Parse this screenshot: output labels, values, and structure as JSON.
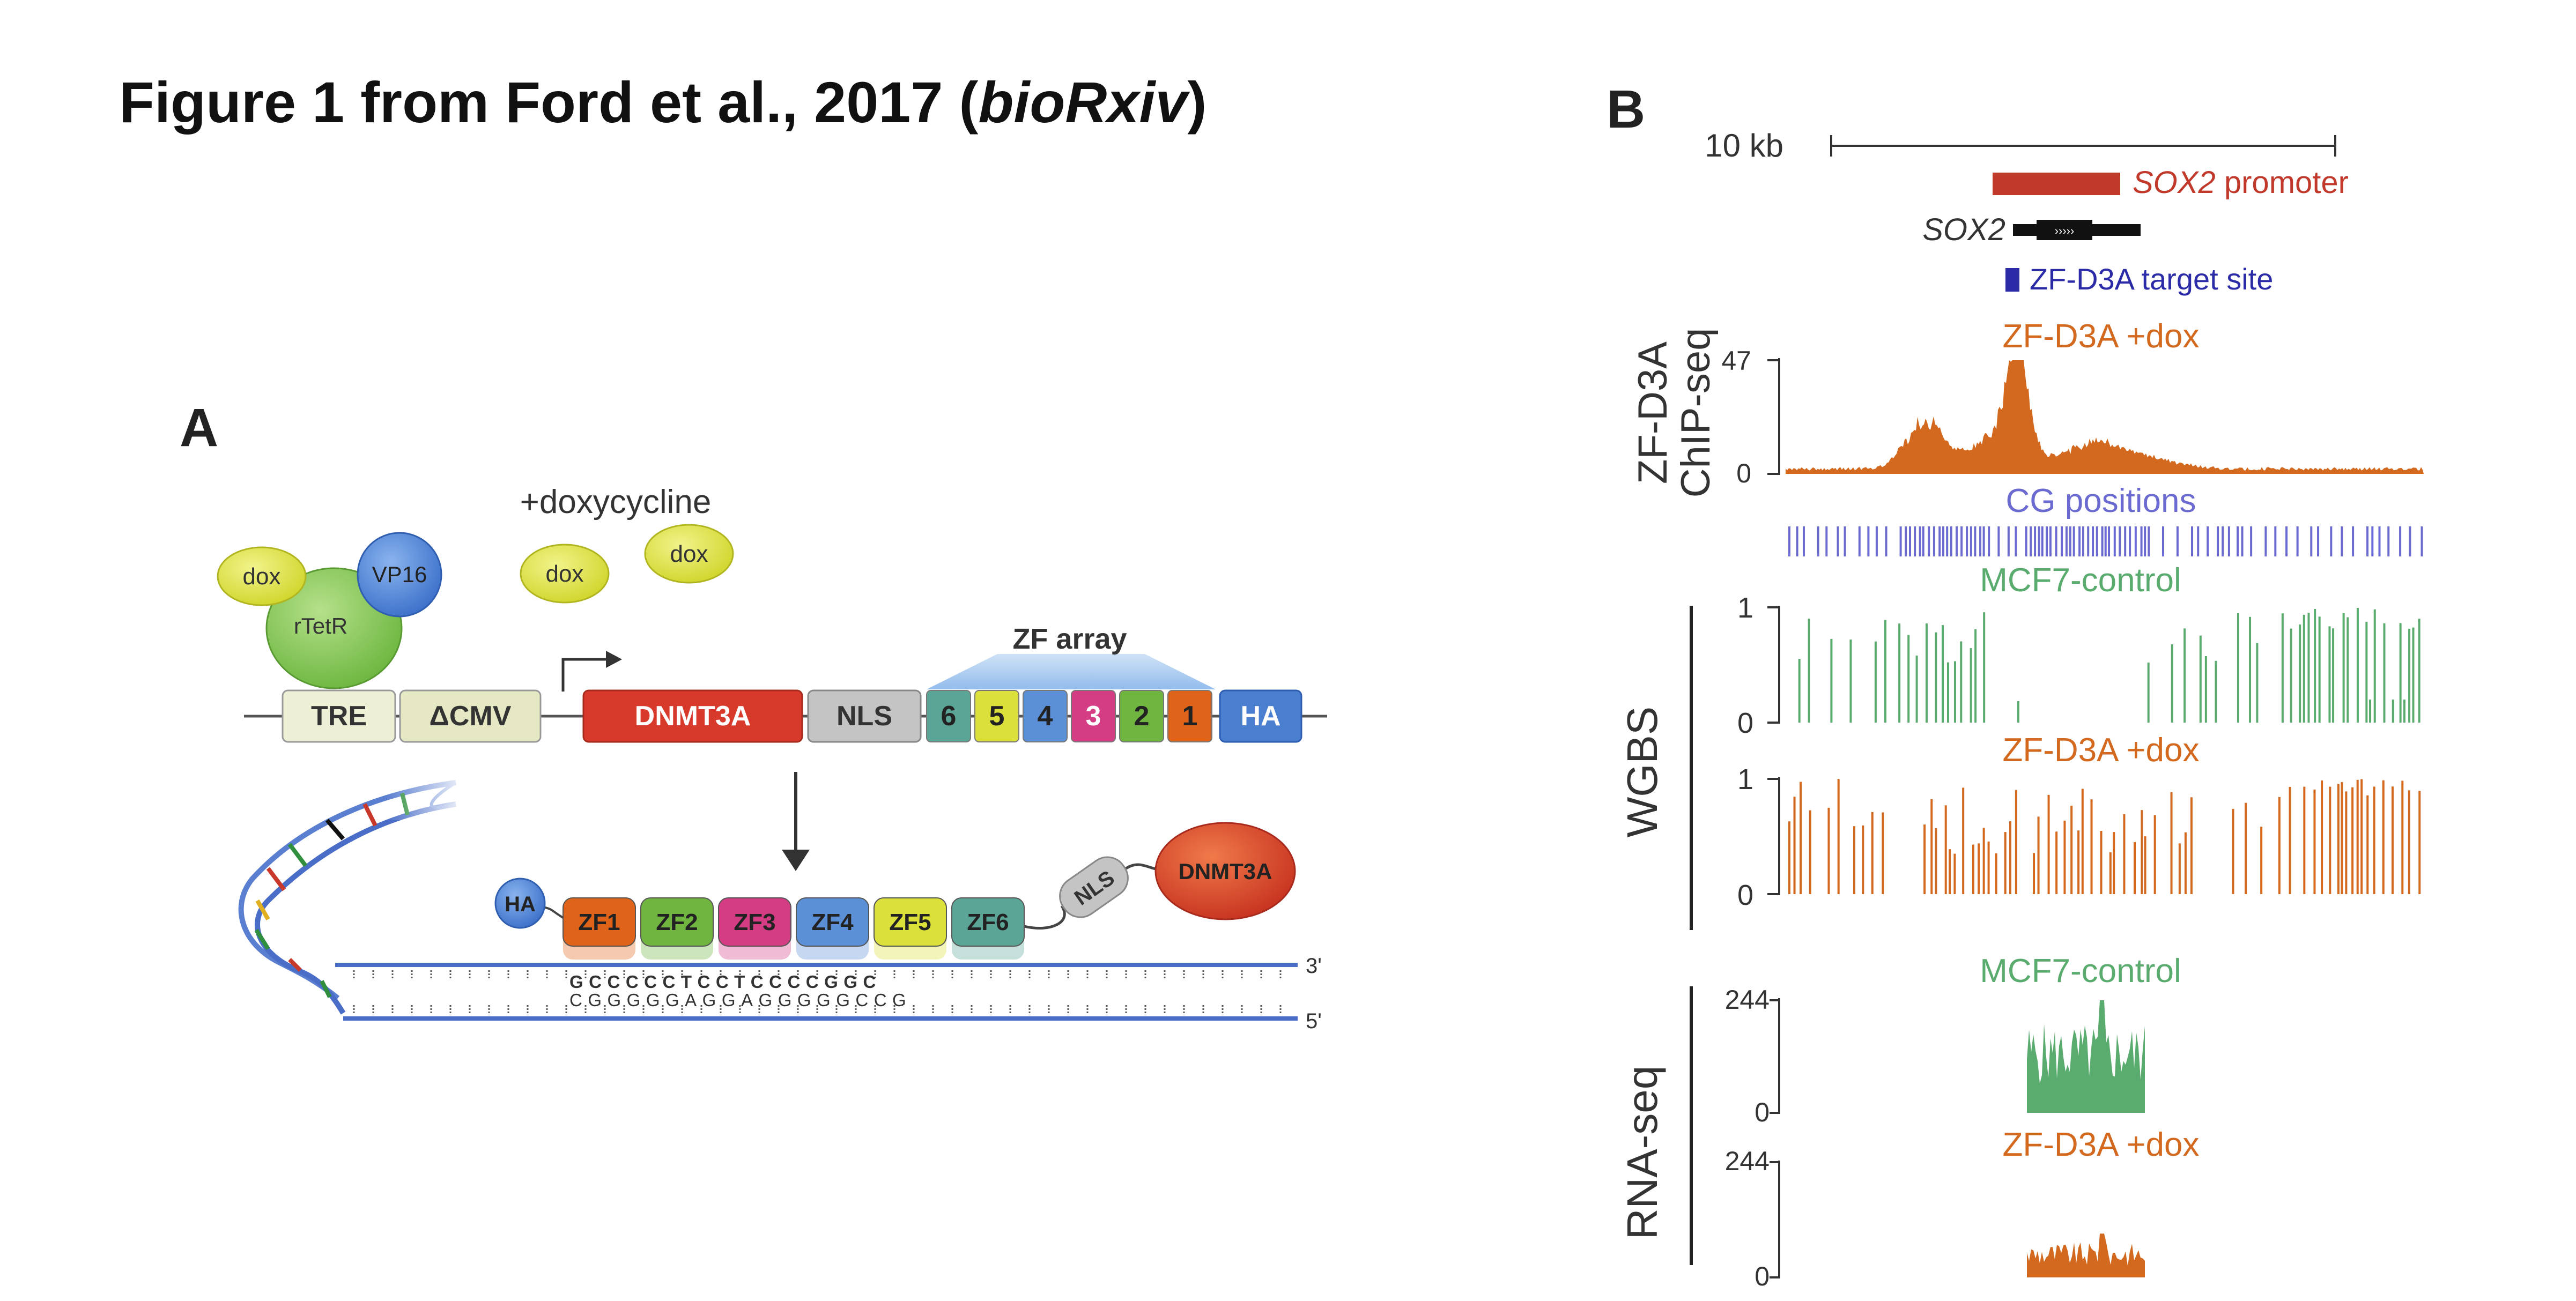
{
  "title": {
    "main": "Figure 1 from Ford et al., 2017 (",
    "italic": "bioRxiv",
    "close": ")"
  },
  "panel_a": {
    "letter": "A",
    "doxycycline_label": "+doxycycline",
    "dox_label": "dox",
    "vp16_label": "VP16",
    "rtetr_label": "rTetR",
    "zf_array_label": "ZF array",
    "construct": {
      "tre": "TRE",
      "dcmv": "ΔCMV",
      "dnmt3a": "DNMT3A",
      "nls": "NLS",
      "zf_digits": [
        "6",
        "5",
        "4",
        "3",
        "2",
        "1"
      ],
      "ha": "HA"
    },
    "protein": {
      "ha": "HA",
      "fingers": [
        "ZF1",
        "ZF2",
        "ZF3",
        "ZF4",
        "ZF5",
        "ZF6"
      ],
      "nls": "NLS",
      "dnmt3a": "DNMT3A"
    },
    "dna": {
      "top_seq": "GCCCCCTCCTCCCCGGC",
      "bottom_seq": "CGGGGGAGGAGGGGGCCG",
      "end_3": "3'",
      "end_5": "5'"
    },
    "colors": {
      "zf1": "#e0631a",
      "zf2": "#70b53f",
      "zf3": "#d43c84",
      "zf4": "#5b8fd6",
      "zf5": "#dbe03a",
      "zf6": "#5aa596",
      "dnmt3a": "#d73a2a",
      "ha": "#4a7fd0"
    }
  },
  "panel_b": {
    "letter": "B",
    "scale_label": "10 kb",
    "promoter_label_italic": "SOX2",
    "promoter_label_rest": " promoter",
    "gene_label": "SOX2",
    "target_site_label": "ZF-D3A target site",
    "chip_track_title": "ZF-D3A +dox",
    "chip_ylabel_line1": "ZF-D3A",
    "chip_ylabel_line2": "ChIP-seq",
    "chip_ymax": "47",
    "chip_ymin": "0",
    "cg_title": "CG positions",
    "wgbs_label": "WGBS",
    "wgbs_control_title": "MCF7-control",
    "wgbs_dox_title": "ZF-D3A +dox",
    "wgbs_ymax": "1",
    "wgbs_ymin": "0",
    "rna_label": "RNA-seq",
    "rna_control_title": "MCF7-control",
    "rna_dox_title": "ZF-D3A +dox",
    "rna_ymax": "244",
    "rna_ymin": "0",
    "colors": {
      "orange": "#d2691e",
      "green": "#5aab6e",
      "cg": "#6a6ad0",
      "promoter": "#c0392b",
      "target": "#2b2ba8"
    }
  }
}
